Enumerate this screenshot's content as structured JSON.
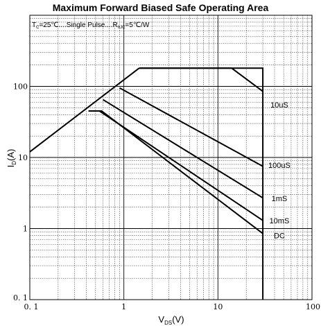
{
  "chart_data": {
    "type": "line",
    "title": "Maximum Forward Biased Safe Operating Area",
    "xlabel": {
      "main": "V",
      "sub": "DS",
      "unit": "(V)"
    },
    "ylabel": {
      "main": "I",
      "sub": "D",
      "unit": "(A)"
    },
    "xscale": "log",
    "yscale": "log",
    "xlim": [
      0.1,
      100
    ],
    "ylim": [
      0.1,
      1000
    ],
    "grid": true,
    "x_ticks": [
      {
        "value": 0.1,
        "label": "0. 1"
      },
      {
        "value": 1,
        "label": "1"
      },
      {
        "value": 10,
        "label": "10"
      },
      {
        "value": 100,
        "label": "100"
      }
    ],
    "y_ticks": [
      {
        "value": 1,
        "label": "1"
      },
      {
        "value": 10,
        "label": "10"
      },
      {
        "value": 100,
        "label": "100"
      }
    ],
    "y_min_label": "0. 1",
    "conditions": {
      "tc_label": "T",
      "tc_sub": "C",
      "tc_value": "=25℃",
      "pulse": "Single Pulse",
      "rth_label": "R",
      "rth_sub": "θJC",
      "rth_value": "=5℃/W"
    },
    "series": [
      {
        "name": "10uS",
        "x": [
          1.45,
          14,
          30
        ],
        "y": [
          180,
          180,
          85
        ]
      },
      {
        "name": "100uS",
        "x": [
          0.9,
          30
        ],
        "y": [
          95,
          7.5
        ]
      },
      {
        "name": "1mS",
        "x": [
          0.6,
          30
        ],
        "y": [
          65,
          2.7
        ]
      },
      {
        "name": "10mS",
        "x": [
          0.55,
          30
        ],
        "y": [
          45,
          1.3
        ]
      },
      {
        "name": "DC",
        "x": [
          0.42,
          0.58,
          30
        ],
        "y": [
          45,
          45,
          0.85
        ]
      }
    ],
    "rds_on_limit": {
      "x": [
        0.1,
        1.45
      ],
      "y": [
        12,
        180
      ]
    },
    "envelope": {
      "x": [
        1.45,
        30,
        30
      ],
      "y": [
        180,
        180,
        0.1
      ]
    },
    "curve_label_positions": [
      {
        "name": "10uS",
        "x": 45,
        "y": 55
      },
      {
        "name": "100uS",
        "x": 45,
        "y": 7.8
      },
      {
        "name": "1mS",
        "x": 45,
        "y": 2.65
      },
      {
        "name": "10mS",
        "x": 45,
        "y": 1.3
      },
      {
        "name": "DC",
        "x": 45,
        "y": 0.8
      }
    ]
  }
}
